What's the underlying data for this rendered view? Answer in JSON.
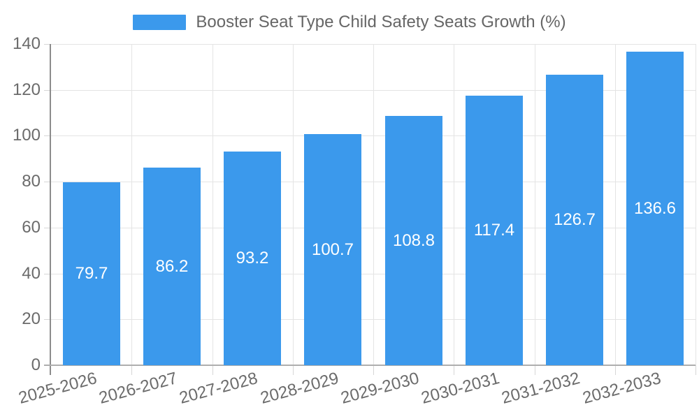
{
  "chart_data": {
    "type": "bar",
    "title": "Booster Seat Type Child Safety Seats Growth (%)",
    "legend_position": "top-center",
    "categories": [
      "2025-2026",
      "2026-2027",
      "2027-2028",
      "2028-2029",
      "2029-2030",
      "2030-2031",
      "2031-2032",
      "2032-2033"
    ],
    "series": [
      {
        "name": "Booster Seat Type Child Safety Seats Growth (%)",
        "values": [
          79.7,
          86.2,
          93.2,
          100.7,
          108.8,
          117.4,
          126.7,
          136.6
        ],
        "value_labels": [
          "79.7",
          "86.2",
          "93.2",
          "100.7",
          "108.8",
          "117.4",
          "126.7",
          "136.6"
        ]
      }
    ],
    "xlabel": "",
    "ylabel": "",
    "ylim": [
      0,
      140
    ],
    "yticks": [
      0,
      20,
      40,
      60,
      80,
      100,
      120,
      140
    ],
    "ytick_labels": [
      "0",
      "20",
      "40",
      "60",
      "80",
      "100",
      "120",
      "140"
    ],
    "grid": true,
    "colors": {
      "bar": "#3b99ec",
      "value_label": "#ffffff",
      "axis_text": "#6b6b6b",
      "legend_text": "#666666",
      "gridline": "#e4e4e4",
      "tick": "#d6d6d6",
      "y_axis_line": "#8c8c8c",
      "x_axis_line": "#aeaeae",
      "background": "#ffffff"
    }
  }
}
